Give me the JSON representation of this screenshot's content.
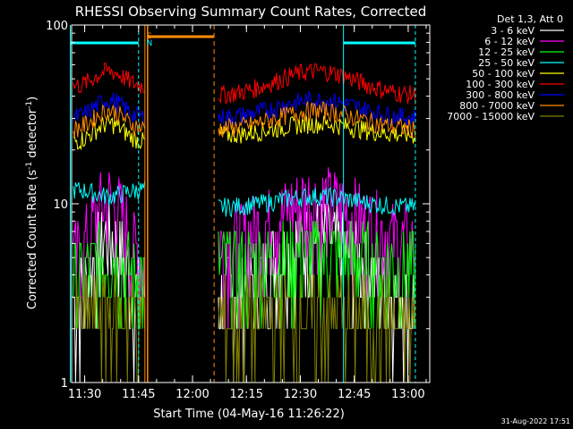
{
  "chart_data": {
    "type": "line",
    "title": "RHESSI Observing Summary Count Rates, Corrected",
    "xlabel": "Start Time (04-May-16 11:26:22)",
    "ylabel_main": "Corrected Count Rate (s",
    "ylabel_sup1": "-1",
    "ylabel_mid": " detector",
    "ylabel_sup2": "-1",
    "ylabel_end": ")",
    "y_scale": "log",
    "ylim": [
      1,
      100
    ],
    "y_ticks": [
      "1",
      "10",
      "100"
    ],
    "x_range_minutes": [
      "11:26",
      "13:06"
    ],
    "x_ticks": [
      "11:30",
      "11:45",
      "12:00",
      "12:15",
      "12:30",
      "12:45",
      "13:00"
    ],
    "legend_header": "Det 1,3, Att 0",
    "legend_position": "top-right outside",
    "timestamp": "31-Aug-2022 17:51",
    "flags": [
      {
        "label": "S",
        "color": "#ff8c00",
        "time": "11:47"
      },
      {
        "label": "N",
        "color": "#00ffff",
        "time": "11:47"
      }
    ],
    "saa_interval": {
      "start": "11:48",
      "end": "12:06",
      "color": "#ff8c00"
    },
    "night_intervals": [
      {
        "start": "11:26",
        "end": "11:45",
        "color": "#00ffff"
      },
      {
        "start": "12:42",
        "end": "13:02",
        "color": "#00ffff"
      }
    ],
    "data_gaps": [
      {
        "start": "11:47",
        "end": "12:07"
      }
    ],
    "series": [
      {
        "name": "3 - 6 keV",
        "color": "#ffffff",
        "level_a": 2.0,
        "level_b": 2.2,
        "peak": 5.0
      },
      {
        "name": "6 - 12 keV",
        "color": "#ff00ff",
        "level_a": 3.5,
        "level_b": 4.5,
        "peak": 8.0
      },
      {
        "name": "12 - 25 keV",
        "color": "#00ff00",
        "level_a": 3.0,
        "level_b": 3.5,
        "peak": 4.0
      },
      {
        "name": "25 - 50 keV",
        "color": "#00ffff",
        "level_a": 12.0,
        "level_b": 9.5,
        "peak": 11.0
      },
      {
        "name": "50 - 100 keV",
        "color": "#ffff00",
        "level_a": 22.0,
        "level_b": 24.0,
        "peak": 28.0
      },
      {
        "name": "100 - 300 keV",
        "color": "#ff0000",
        "level_a": 45.0,
        "level_b": 40.0,
        "peak": 55.0
      },
      {
        "name": "300 - 800 keV",
        "color": "#0000ff",
        "level_a": 30.0,
        "level_b": 30.0,
        "peak": 38.0
      },
      {
        "name": "800 - 7000 keV",
        "color": "#ff8c00",
        "level_a": 26.0,
        "level_b": 26.0,
        "peak": 33.0
      },
      {
        "name": "7000 - 15000 keV",
        "color": "#808000",
        "level_a": 1.8,
        "level_b": 1.7,
        "peak": 2.0
      }
    ]
  }
}
